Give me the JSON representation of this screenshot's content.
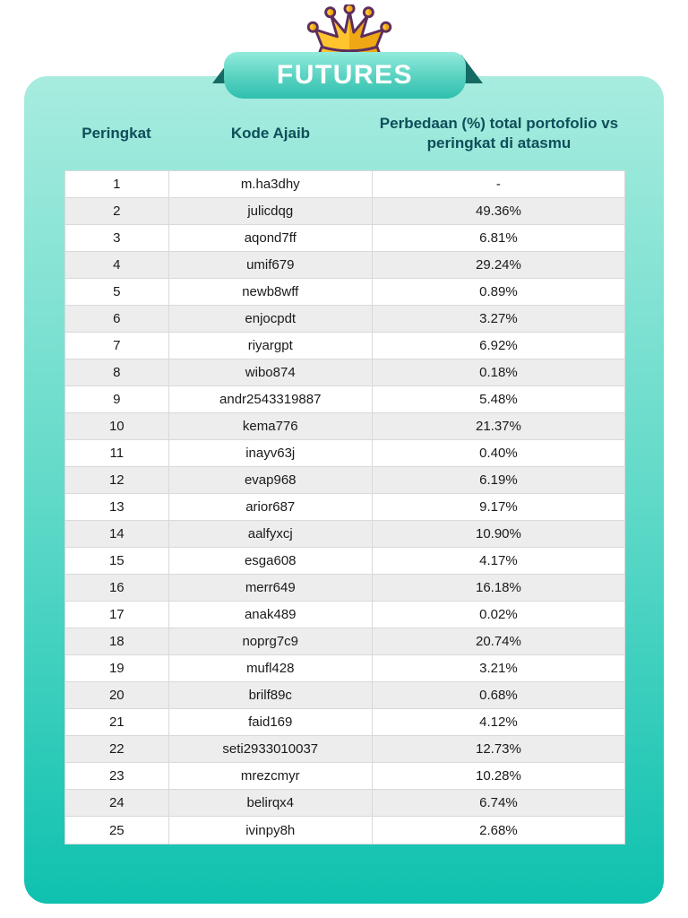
{
  "banner": {
    "label": "FUTURES"
  },
  "chart_data": {
    "type": "table",
    "title": "FUTURES",
    "columns": [
      "Peringkat",
      "Kode Ajaib",
      "Perbedaan (%) total portofolio vs peringkat di atasmu"
    ],
    "rows": [
      {
        "rank": "1",
        "code": "m.ha3dhy",
        "diff": "-"
      },
      {
        "rank": "2",
        "code": "julicdqg",
        "diff": "49.36%"
      },
      {
        "rank": "3",
        "code": "aqond7ff",
        "diff": "6.81%"
      },
      {
        "rank": "4",
        "code": "umif679",
        "diff": "29.24%"
      },
      {
        "rank": "5",
        "code": "newb8wff",
        "diff": "0.89%"
      },
      {
        "rank": "6",
        "code": "enjocpdt",
        "diff": "3.27%"
      },
      {
        "rank": "7",
        "code": "riyargpt",
        "diff": "6.92%"
      },
      {
        "rank": "8",
        "code": "wibo874",
        "diff": "0.18%"
      },
      {
        "rank": "9",
        "code": "andr2543319887",
        "diff": "5.48%"
      },
      {
        "rank": "10",
        "code": "kema776",
        "diff": "21.37%"
      },
      {
        "rank": "11",
        "code": "inayv63j",
        "diff": "0.40%"
      },
      {
        "rank": "12",
        "code": "evap968",
        "diff": "6.19%"
      },
      {
        "rank": "13",
        "code": "arior687",
        "diff": "9.17%"
      },
      {
        "rank": "14",
        "code": "aalfyxcj",
        "diff": "10.90%"
      },
      {
        "rank": "15",
        "code": "esga608",
        "diff": "4.17%"
      },
      {
        "rank": "16",
        "code": "merr649",
        "diff": "16.18%"
      },
      {
        "rank": "17",
        "code": "anak489",
        "diff": "0.02%"
      },
      {
        "rank": "18",
        "code": "noprg7c9",
        "diff": "20.74%"
      },
      {
        "rank": "19",
        "code": "mufl428",
        "diff": "3.21%"
      },
      {
        "rank": "20",
        "code": "brilf89c",
        "diff": "0.68%"
      },
      {
        "rank": "21",
        "code": "faid169",
        "diff": "4.12%"
      },
      {
        "rank": "22",
        "code": "seti2933010037",
        "diff": "12.73%"
      },
      {
        "rank": "23",
        "code": "mrezcmyr",
        "diff": "10.28%"
      },
      {
        "rank": "24",
        "code": "belirqx4",
        "diff": "6.74%"
      },
      {
        "rank": "25",
        "code": "ivinpy8h",
        "diff": "2.68%"
      }
    ]
  },
  "colors": {
    "card_gradient_top": "#A7ECDF",
    "card_gradient_bottom": "#0FC1AF",
    "ribbon_gradient_top": "#93EBDD",
    "ribbon_gradient_bottom": "#2FBFAD",
    "ribbon_fold": "#156B63",
    "banner_text": "#FFFFFF",
    "header_text": "#0F4E5A",
    "crown_gold_light": "#FFC42E",
    "crown_gold_dark": "#F0A714",
    "crown_outline": "#5C2E5E",
    "row_alt_background": "#EDEDED",
    "row_border": "#D9D9D9",
    "cell_text": "#1A1A1A"
  }
}
